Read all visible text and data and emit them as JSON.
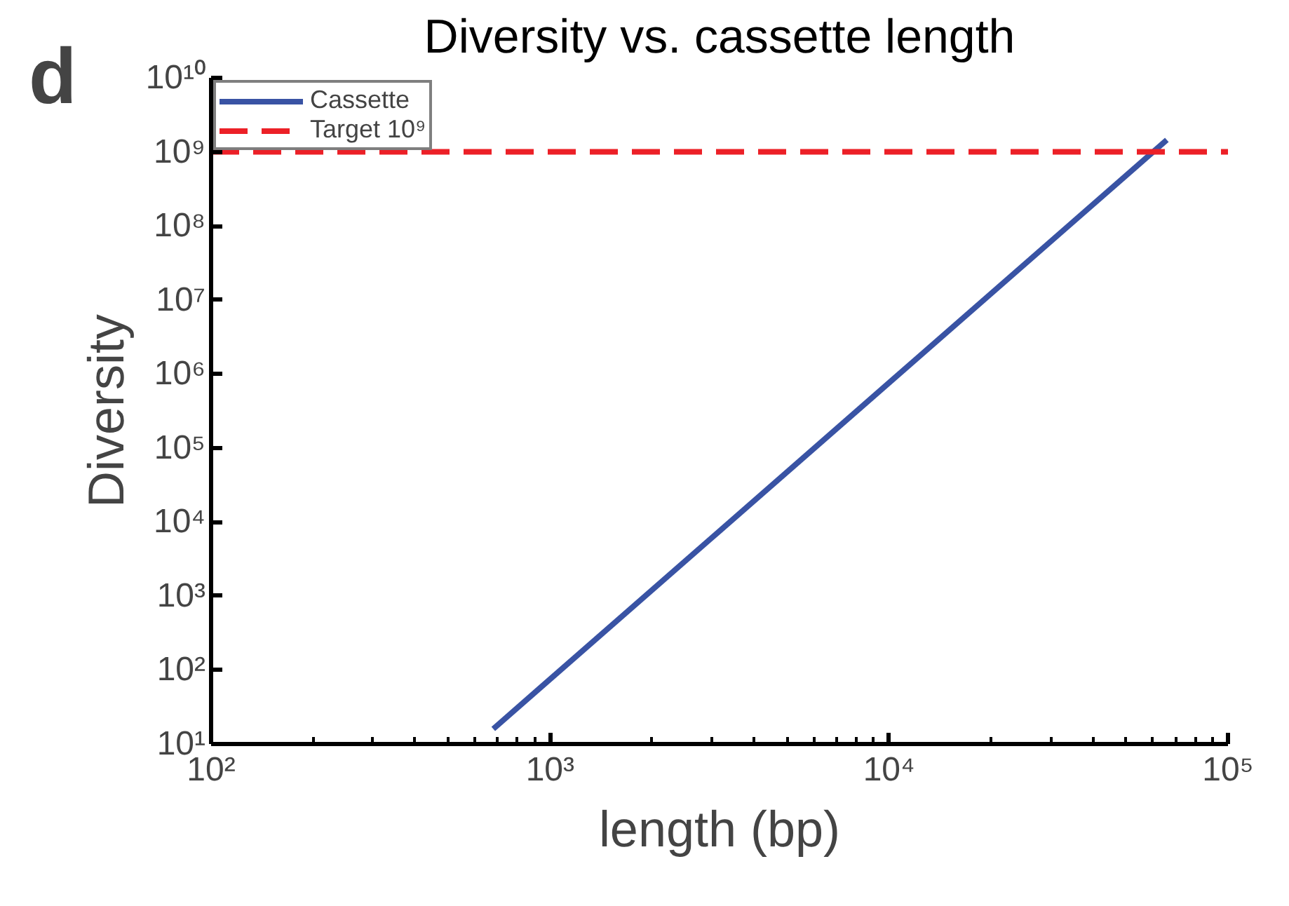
{
  "chart_data": {
    "type": "line",
    "title": "Diversity vs. cassette length",
    "xlabel": "length (bp)",
    "ylabel": "Diversity",
    "annotations": [
      "d"
    ],
    "log": "xy",
    "grid": false,
    "legend": "top left",
    "marker": "none",
    "xlim": [
      100,
      100000
    ],
    "ylim": [
      10,
      10000000000
    ],
    "xticks": [
      {
        "value": 100,
        "label": "10²"
      },
      {
        "value": 1000,
        "label": "10³"
      },
      {
        "value": 10000,
        "label": "10⁴"
      },
      {
        "value": 100000,
        "label": "10⁵"
      }
    ],
    "yticks": [
      {
        "value": 10,
        "label": "10¹"
      },
      {
        "value": 100,
        "label": "10²"
      },
      {
        "value": 1000,
        "label": "10³"
      },
      {
        "value": 10000,
        "label": "10⁴"
      },
      {
        "value": 100000,
        "label": "10⁵"
      },
      {
        "value": 1000000,
        "label": "10⁶"
      },
      {
        "value": 10000000,
        "label": "10⁷"
      },
      {
        "value": 100000000,
        "label": "10⁸"
      },
      {
        "value": 1000000000,
        "label": "10⁹"
      },
      {
        "value": 10000000000,
        "label": "10¹⁰"
      }
    ],
    "series": [
      {
        "name": "Cassette",
        "color": "#3953a4",
        "x": [
          680,
          66000
        ],
        "values": [
          16,
          1450000000
        ],
        "line_style": "solid"
      },
      {
        "name": "Target 10⁹",
        "color": "#ec2027",
        "x": [
          100,
          100000
        ],
        "values": [
          1000000000,
          1000000000
        ],
        "line_style": "dashed"
      }
    ]
  }
}
